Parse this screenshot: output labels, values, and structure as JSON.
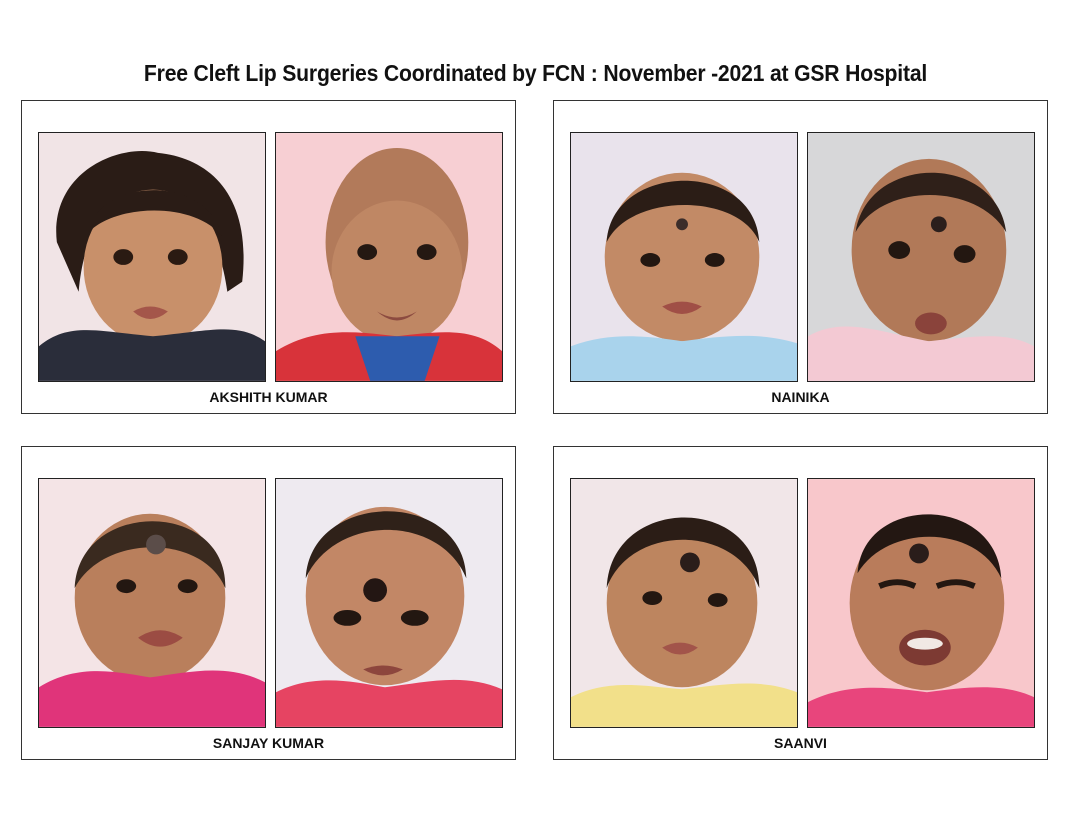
{
  "page": {
    "title": "Free Cleft Lip Surgeries Coordinated by FCN : November -2021 at GSR Hospital"
  },
  "patients": [
    {
      "name": "AKSHITH KUMAR",
      "before_photo": {
        "background": "#f1e4e6",
        "shirt": "#2a2d3a",
        "hair": "long"
      },
      "after_photo": {
        "background": "#f7cfd3",
        "shirt": "#d8333a",
        "hair": "bald"
      }
    },
    {
      "name": "NAINIKA",
      "before_photo": {
        "background": "#e9e3ec",
        "shirt": "#a9d3ec",
        "hair": "short"
      },
      "after_photo": {
        "background": "#d7d7d9",
        "shirt": "#f3c9d3",
        "hair": "short"
      }
    },
    {
      "name": "SANJAY KUMAR",
      "before_photo": {
        "background": "#f4e4e6",
        "shirt": "#e0347a",
        "hair": "short"
      },
      "after_photo": {
        "background": "#eeeaf0",
        "shirt": "#e64462",
        "hair": "short"
      }
    },
    {
      "name": "SAANVI",
      "before_photo": {
        "background": "#f1e6e8",
        "shirt": "#f2e08a",
        "hair": "short"
      },
      "after_photo": {
        "background": "#f8c7cb",
        "shirt": "#e8457c",
        "hair": "short"
      }
    }
  ]
}
